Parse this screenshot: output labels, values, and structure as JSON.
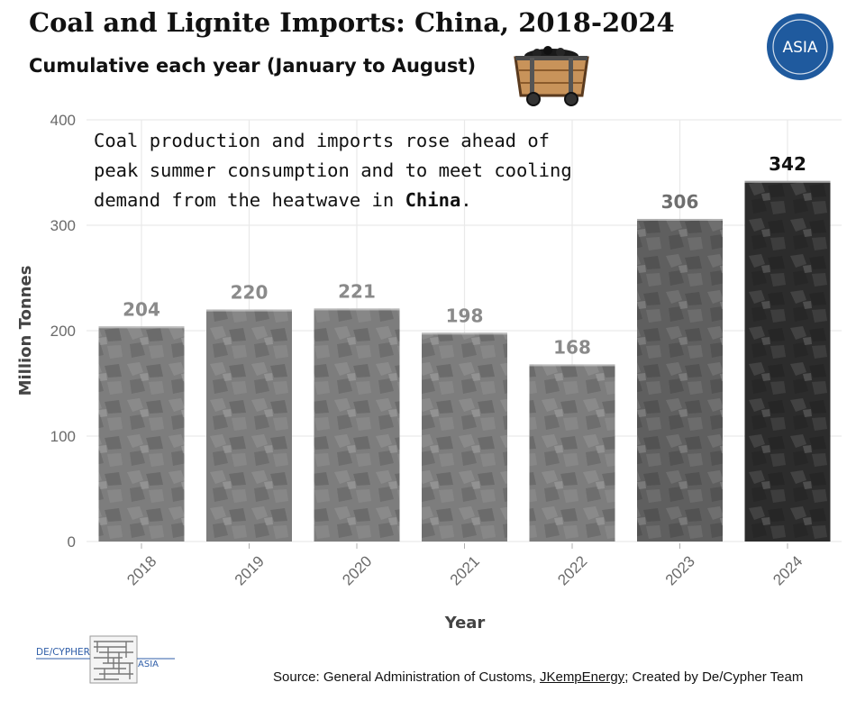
{
  "header": {
    "title": "Coal and Lignite Imports: China, 2018-2024",
    "subtitle": "Cumulative each year (January to August)"
  },
  "logo": {
    "text": "ASIA"
  },
  "annotation": {
    "line1": "Coal production and imports rose ahead of",
    "line2": "peak summer consumption and to meet cooling",
    "line3_prefix": "demand from the heatwave in ",
    "line3_bold": "China",
    "line3_suffix": "."
  },
  "chart_data": {
    "type": "bar",
    "title": "Coal and Lignite Imports: China, 2018-2024",
    "subtitle": "Cumulative each year (January to August)",
    "xlabel": "Year",
    "ylabel": "Million Tonnes",
    "ylim": [
      0,
      400
    ],
    "yticks": [
      0,
      100,
      200,
      300,
      400
    ],
    "categories": [
      "2018",
      "2019",
      "2020",
      "2021",
      "2022",
      "2023",
      "2024"
    ],
    "values": [
      204,
      220,
      221,
      198,
      168,
      306,
      342
    ],
    "data_labels": [
      "204",
      "220",
      "221",
      "198",
      "168",
      "306",
      "342"
    ],
    "grid": true,
    "bar_colors": [
      "#7d7d7d",
      "#7d7d7d",
      "#7d7d7d",
      "#7d7d7d",
      "#7d7d7d",
      "#5f5f5f",
      "#2c2c2c"
    ],
    "label_colors": [
      "#8a8a8a",
      "#8a8a8a",
      "#8a8a8a",
      "#8a8a8a",
      "#8a8a8a",
      "#6e6e6e",
      "#111111"
    ]
  },
  "footer": {
    "brand_left": "DE/CYPHER",
    "brand_right": "ASIA",
    "source_prefix": "Source: General Administration of Customs, ",
    "source_link": "JKempEnergy",
    "source_suffix": "; Created by De/Cypher Team"
  },
  "colors": {
    "grid": "#e9e9e9",
    "axis_text": "#6a6a6a",
    "logo_bg": "#1f5a9e",
    "brand": "#2f5ea8"
  }
}
